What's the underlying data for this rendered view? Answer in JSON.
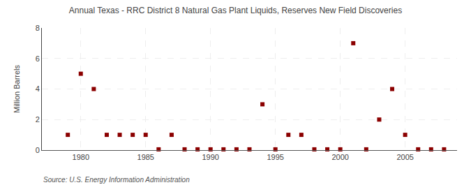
{
  "chart_data": {
    "type": "scatter",
    "title": "Annual Texas - RRC District 8 Natural Gas Plant Liquids, Reserves New Field Discoveries",
    "ylabel": "Million Barrels",
    "annotations": [
      "Source: U.S. Energy Information Administration"
    ],
    "color": "#8b0000",
    "marker": "square",
    "grid": true,
    "xlim": [
      1977,
      2009
    ],
    "ylim": [
      0,
      8
    ],
    "xticks": [
      1980,
      1985,
      1990,
      1995,
      2000,
      2005
    ],
    "yticks": [
      0,
      2,
      4,
      6,
      8
    ],
    "x": [
      1979,
      1980,
      1981,
      1982,
      1983,
      1984,
      1985,
      1986,
      1987,
      1988,
      1989,
      1990,
      1991,
      1992,
      1993,
      1994,
      1995,
      1996,
      1997,
      1998,
      1999,
      2000,
      2001,
      2002,
      2003,
      2004,
      2005,
      2006,
      2007,
      2008
    ],
    "values": [
      1.0,
      5.0,
      4.0,
      1.0,
      1.0,
      1.0,
      1.0,
      0.05,
      1.0,
      0.05,
      0.05,
      0.05,
      0.05,
      0.05,
      0.05,
      3.0,
      0.05,
      1.0,
      1.0,
      0.05,
      0.05,
      0.05,
      7.0,
      0.05,
      2.0,
      4.0,
      1.0,
      0.05,
      0.05,
      0.05
    ]
  }
}
